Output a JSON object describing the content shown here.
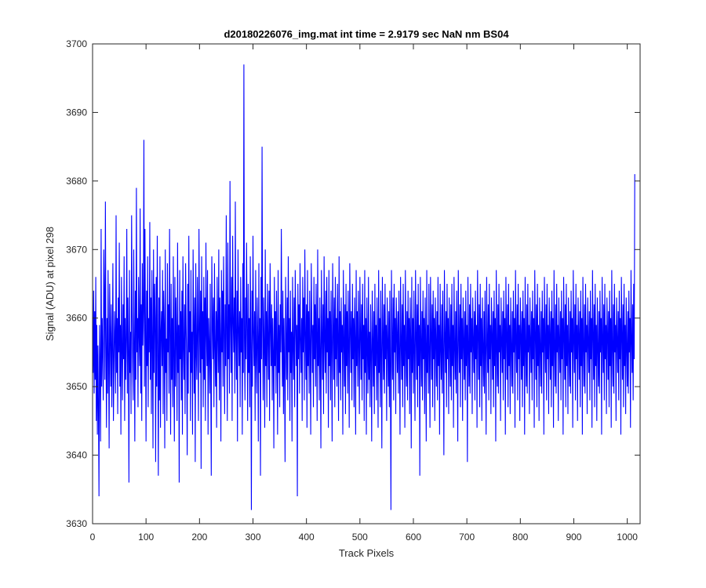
{
  "chart_data": {
    "type": "line",
    "title": "d20180226076_img.mat int time = 2.9179 sec  NaN nm BS04",
    "xlabel": "Track Pixels",
    "ylabel": "Signal (ADU) at pixel 298",
    "xlim": [
      0,
      1024
    ],
    "ylim": [
      3630,
      3700
    ],
    "xticks": [
      0,
      100,
      200,
      300,
      400,
      500,
      600,
      700,
      800,
      900,
      1000
    ],
    "yticks": [
      3630,
      3640,
      3650,
      3660,
      3670,
      3680,
      3690,
      3700
    ],
    "grid": false,
    "legend": "none",
    "series": [
      {
        "color": "#0000ff",
        "x_start": 1,
        "x_step": 1,
        "values": [
          3652,
          3664,
          3649,
          3661,
          3651,
          3666,
          3645,
          3659,
          3643,
          3656,
          3647,
          3634,
          3659,
          3653,
          3642,
          3673,
          3650,
          3660,
          3655,
          3648,
          3670,
          3663,
          3651,
          3677,
          3657,
          3644,
          3660,
          3649,
          3667,
          3654,
          3641,
          3665,
          3658,
          3650,
          3662,
          3647,
          3656,
          3668,
          3645,
          3653,
          3661,
          3657,
          3649,
          3675,
          3652,
          3660,
          3646,
          3663,
          3655,
          3671,
          3650,
          3659,
          3643,
          3666,
          3656,
          3648,
          3662,
          3654,
          3669,
          3645,
          3660,
          3651,
          3657,
          3673,
          3649,
          3663,
          3655,
          3636,
          3667,
          3652,
          3658,
          3646,
          3675,
          3661,
          3653,
          3648,
          3670,
          3657,
          3642,
          3664,
          3651,
          3679,
          3655,
          3660,
          3647,
          3666,
          3658,
          3653,
          3676,
          3649,
          3662,
          3645,
          3668,
          3656,
          3661,
          3686,
          3650,
          3673,
          3658,
          3642,
          3664,
          3653,
          3669,
          3647,
          3660,
          3655,
          3674,
          3651,
          3663,
          3646,
          3667,
          3657,
          3641,
          3670,
          3652,
          3665,
          3660,
          3639,
          3666,
          3650,
          3672,
          3655,
          3637,
          3663,
          3648,
          3669,
          3644,
          3658,
          3661,
          3653,
          3667,
          3646,
          3664,
          3659,
          3641,
          3670,
          3652,
          3657,
          3645,
          3668,
          3655,
          3662,
          3649,
          3673,
          3658,
          3643,
          3665,
          3651,
          3660,
          3647,
          3669,
          3654,
          3642,
          3666,
          3650,
          3663,
          3657,
          3645,
          3671,
          3652,
          3659,
          3636,
          3667,
          3654,
          3661,
          3648,
          3664,
          3643,
          3669,
          3656,
          3651,
          3662,
          3646,
          3668,
          3659,
          3653,
          3640,
          3665,
          3649,
          3672,
          3655,
          3661,
          3645,
          3667,
          3652,
          3658,
          3643,
          3670,
          3660,
          3649,
          3663,
          3639,
          3668,
          3655,
          3651,
          3666,
          3657,
          3645,
          3673,
          3659,
          3652,
          3664,
          3638,
          3669,
          3654,
          3661,
          3647,
          3666,
          3651,
          3663,
          3645,
          3671,
          3658,
          3653,
          3667,
          3643,
          3660,
          3656,
          3649,
          3665,
          3652,
          3637,
          3669,
          3660,
          3654,
          3663,
          3647,
          3668,
          3656,
          3650,
          3661,
          3644,
          3666,
          3658,
          3652,
          3670,
          3648,
          3663,
          3657,
          3642,
          3667,
          3655,
          3664,
          3650,
          3669,
          3659,
          3646,
          3662,
          3653,
          3675,
          3657,
          3645,
          3671,
          3654,
          3662,
          3649,
          3680,
          3659,
          3652,
          3666,
          3645,
          3672,
          3660,
          3655,
          3663,
          3649,
          3677,
          3657,
          3651,
          3664,
          3642,
          3670,
          3659,
          3653,
          3661,
          3647,
          3666,
          3655,
          3660,
          3643,
          3668,
          3652,
          3697,
          3657,
          3648,
          3663,
          3654,
          3671,
          3659,
          3645,
          3665,
          3652,
          3660,
          3647,
          3669,
          3656,
          3632,
          3664,
          3650,
          3672,
          3658,
          3653,
          3661,
          3645,
          3667,
          3655,
          3649,
          3663,
          3657,
          3642,
          3668,
          3652,
          3660,
          3637,
          3666,
          3654,
          3685,
          3659,
          3648,
          3663,
          3656,
          3644,
          3670,
          3653,
          3661,
          3647,
          3665,
          3657,
          3651,
          3664,
          3645,
          3668,
          3659,
          3653,
          3662,
          3648,
          3660,
          3655,
          3641,
          3666,
          3653,
          3661,
          3649,
          3664,
          3656,
          3643,
          3667,
          3652,
          3659,
          3647,
          3662,
          3655,
          3673,
          3658,
          3650,
          3664,
          3646,
          3660,
          3653,
          3639,
          3666,
          3657,
          3651,
          3663,
          3648,
          3669,
          3655,
          3660,
          3645,
          3664,
          3652,
          3658,
          3642,
          3666,
          3656,
          3651,
          3663,
          3647,
          3667,
          3660,
          3653,
          3659,
          3634,
          3665,
          3654,
          3662,
          3649,
          3668,
          3657,
          3652,
          3660,
          3645,
          3666,
          3655,
          3663,
          3648,
          3670,
          3658,
          3651,
          3662,
          3644,
          3667,
          3653,
          3661,
          3649,
          3664,
          3656,
          3643,
          3668,
          3660,
          3652,
          3659,
          3647,
          3666,
          3654,
          3662,
          3650,
          3665,
          3657,
          3645,
          3670,
          3653,
          3660,
          3648,
          3663,
          3655,
          3641,
          3667,
          3658,
          3651,
          3662,
          3646,
          3669,
          3657,
          3652,
          3664,
          3649,
          3666,
          3655,
          3660,
          3644,
          3667,
          3653,
          3661,
          3648,
          3664,
          3656,
          3642,
          3668,
          3659,
          3651,
          3663,
          3647,
          3666,
          3654,
          3660,
          3650,
          3665,
          3657,
          3645,
          3669,
          3652,
          3661,
          3648,
          3663,
          3655,
          3659,
          3643,
          3667,
          3657,
          3650,
          3662,
          3646,
          3665,
          3653,
          3661,
          3649,
          3664,
          3656,
          3644,
          3668,
          3659,
          3652,
          3661,
          3648,
          3665,
          3654,
          3660,
          3647,
          3663,
          3657,
          3643,
          3667,
          3653,
          3661,
          3650,
          3664,
          3656,
          3646,
          3666,
          3658,
          3651,
          3662,
          3648,
          3665,
          3654,
          3659,
          3645,
          3667,
          3652,
          3660,
          3643,
          3663,
          3656,
          3649,
          3666,
          3651,
          3658,
          3647,
          3662,
          3655,
          3642,
          3664,
          3657,
          3650,
          3661,
          3646,
          3665,
          3653,
          3659,
          3648,
          3663,
          3656,
          3644,
          3667,
          3652,
          3660,
          3647,
          3664,
          3655,
          3641,
          3666,
          3658,
          3651,
          3662,
          3649,
          3665,
          3654,
          3659,
          3645,
          3663,
          3657,
          3650,
          3661,
          3647,
          3664,
          3653,
          3632,
          3667,
          3657,
          3651,
          3663,
          3648,
          3665,
          3655,
          3660,
          3646,
          3663,
          3658,
          3652,
          3661,
          3649,
          3664,
          3655,
          3643,
          3666,
          3657,
          3651,
          3662,
          3647,
          3665,
          3653,
          3659,
          3644,
          3667,
          3656,
          3650,
          3661,
          3648,
          3664,
          3654,
          3660,
          3646,
          3663,
          3657,
          3641,
          3666,
          3652,
          3660,
          3649,
          3664,
          3655,
          3645,
          3667,
          3658,
          3651,
          3662,
          3647,
          3665,
          3653,
          3659,
          3637,
          3666,
          3657,
          3650,
          3661,
          3648,
          3664,
          3654,
          3660,
          3646,
          3663,
          3656,
          3642,
          3667,
          3652,
          3659,
          3649,
          3665,
          3655,
          3644,
          3666,
          3658,
          3651,
          3662,
          3647,
          3664,
          3654,
          3660,
          3645,
          3663,
          3657,
          3650,
          3661,
          3648,
          3666,
          3653,
          3659,
          3643,
          3665,
          3656,
          3651,
          3662,
          3649,
          3664,
          3655,
          3640,
          3667,
          3658,
          3652,
          3661,
          3647,
          3665,
          3654,
          3660,
          3646,
          3663,
          3657,
          3650,
          3662,
          3648,
          3665,
          3653,
          3659,
          3644,
          3666,
          3656,
          3651,
          3661,
          3649,
          3664,
          3655,
          3642,
          3667,
          3658,
          3652,
          3662,
          3647,
          3665,
          3654,
          3660,
          3645,
          3663,
          3657,
          3651,
          3661,
          3648,
          3664,
          3653,
          3659,
          3639,
          3666,
          3656,
          3650,
          3662,
          3649,
          3665,
          3655,
          3660,
          3646,
          3663,
          3657,
          3652,
          3661,
          3648,
          3664,
          3654,
          3659,
          3644,
          3667,
          3658,
          3651,
          3662,
          3647,
          3665,
          3653,
          3660,
          3645,
          3663,
          3656,
          3650,
          3661,
          3649,
          3664,
          3655,
          3643,
          3666,
          3657,
          3652,
          3662,
          3648,
          3665,
          3654,
          3659,
          3646,
          3663,
          3658,
          3651,
          3661,
          3647,
          3664,
          3653,
          3660,
          3642,
          3667,
          3656,
          3650,
          3662,
          3649,
          3665,
          3655,
          3659,
          3645,
          3663,
          3657,
          3652,
          3661,
          3648,
          3664,
          3654,
          3660,
          3643,
          3666,
          3658,
          3651,
          3662,
          3647,
          3665,
          3653,
          3659,
          3646,
          3663,
          3656,
          3650,
          3661,
          3649,
          3664,
          3655,
          3660,
          3644,
          3667,
          3657,
          3652,
          3662,
          3648,
          3665,
          3654,
          3659,
          3645,
          3663,
          3658,
          3651,
          3661,
          3647,
          3664,
          3653,
          3660,
          3643,
          3666,
          3656,
          3650,
          3662,
          3649,
          3665,
          3655,
          3659,
          3646,
          3663,
          3657,
          3652,
          3661,
          3648,
          3664,
          3654,
          3660,
          3644,
          3667,
          3658,
          3651,
          3662,
          3647,
          3665,
          3653,
          3659,
          3645,
          3663,
          3656,
          3650,
          3661,
          3649,
          3664,
          3655,
          3660,
          3643,
          3666,
          3657,
          3652,
          3662,
          3648,
          3665,
          3654,
          3659,
          3646,
          3663,
          3658,
          3651,
          3661,
          3647,
          3664,
          3653,
          3660,
          3644,
          3667,
          3656,
          3650,
          3662,
          3649,
          3665,
          3655,
          3659,
          3645,
          3663,
          3657,
          3652,
          3661,
          3648,
          3664,
          3654,
          3660,
          3643,
          3666,
          3658,
          3651,
          3662,
          3647,
          3665,
          3653,
          3659,
          3646,
          3663,
          3656,
          3650,
          3661,
          3649,
          3664,
          3655,
          3660,
          3644,
          3667,
          3657,
          3652,
          3662,
          3648,
          3665,
          3654,
          3659,
          3645,
          3663,
          3658,
          3651,
          3661,
          3647,
          3664,
          3653,
          3660,
          3643,
          3666,
          3656,
          3650,
          3662,
          3649,
          3665,
          3655,
          3659,
          3646,
          3663,
          3657,
          3652,
          3661,
          3648,
          3664,
          3654,
          3660,
          3644,
          3667,
          3658,
          3651,
          3662,
          3647,
          3665,
          3653,
          3659,
          3645,
          3663,
          3656,
          3650,
          3661,
          3649,
          3664,
          3655,
          3660,
          3643,
          3666,
          3657,
          3652,
          3662,
          3648,
          3665,
          3654,
          3659,
          3646,
          3663,
          3658,
          3651,
          3661,
          3647,
          3664,
          3653,
          3660,
          3644,
          3667,
          3656,
          3650,
          3662,
          3649,
          3665,
          3655,
          3659,
          3645,
          3663,
          3657,
          3652,
          3661,
          3648,
          3664,
          3654,
          3660,
          3643,
          3666,
          3658,
          3651,
          3662,
          3647,
          3665,
          3653,
          3659,
          3646,
          3663,
          3656,
          3650,
          3661,
          3649,
          3664,
          3655,
          3660,
          3644,
          3667,
          3657,
          3652,
          3662,
          3648,
          3665,
          3654,
          3681
        ]
      }
    ]
  }
}
